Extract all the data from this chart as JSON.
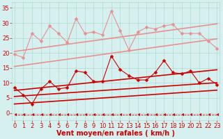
{
  "x": [
    0,
    1,
    2,
    3,
    4,
    5,
    6,
    7,
    8,
    9,
    10,
    11,
    12,
    13,
    14,
    15,
    16,
    17,
    18,
    19,
    20,
    21,
    22,
    23
  ],
  "series": [
    {
      "name": "light_pink_zigzag",
      "color": "#e89090",
      "marker": "D",
      "markersize": 2.5,
      "linewidth": 0.8,
      "linestyle": "-",
      "y": [
        19.5,
        18.5,
        26.5,
        24.0,
        29.0,
        26.5,
        23.5,
        31.5,
        26.5,
        27.0,
        26.0,
        34.0,
        27.5,
        21.0,
        27.0,
        28.5,
        28.0,
        29.0,
        29.5,
        26.5,
        26.5,
        26.5,
        24.0,
        21.5
      ]
    },
    {
      "name": "light_pink_trend_upper",
      "color": "#e89090",
      "marker": null,
      "markersize": 0,
      "linewidth": 1.2,
      "linestyle": "-",
      "y": [
        20.5,
        20.9,
        21.3,
        21.7,
        22.1,
        22.5,
        22.9,
        23.3,
        23.7,
        24.1,
        24.5,
        24.9,
        25.3,
        25.7,
        26.1,
        26.5,
        26.9,
        27.3,
        27.7,
        28.1,
        28.5,
        28.9,
        29.3,
        29.7
      ]
    },
    {
      "name": "light_pink_trend_lower",
      "color": "#e89090",
      "marker": null,
      "markersize": 0,
      "linewidth": 1.2,
      "linestyle": "-",
      "y": [
        15.5,
        15.9,
        16.3,
        16.7,
        17.1,
        17.5,
        17.9,
        18.3,
        18.7,
        19.1,
        19.5,
        19.9,
        20.3,
        20.7,
        21.1,
        21.5,
        21.9,
        22.3,
        22.7,
        23.1,
        23.5,
        23.9,
        24.3,
        24.7
      ]
    },
    {
      "name": "red_zigzag",
      "color": "#cc0000",
      "marker": "D",
      "markersize": 2.5,
      "linewidth": 0.8,
      "linestyle": "-",
      "y": [
        8.5,
        6.0,
        3.0,
        8.0,
        10.5,
        8.0,
        8.5,
        14.0,
        13.5,
        10.5,
        10.5,
        19.0,
        14.5,
        12.5,
        11.0,
        11.0,
        13.5,
        17.5,
        13.5,
        13.0,
        14.0,
        10.0,
        11.5,
        9.5
      ]
    },
    {
      "name": "red_trend_upper",
      "color": "#cc0000",
      "marker": null,
      "markersize": 0,
      "linewidth": 1.2,
      "linestyle": "-",
      "y": [
        7.5,
        7.8,
        8.1,
        8.4,
        8.7,
        9.0,
        9.3,
        9.6,
        9.9,
        10.2,
        10.5,
        10.8,
        11.1,
        11.4,
        11.7,
        12.0,
        12.3,
        12.6,
        12.9,
        13.2,
        13.5,
        13.8,
        14.1,
        14.4
      ]
    },
    {
      "name": "red_trend_mid",
      "color": "#cc0000",
      "marker": null,
      "markersize": 0,
      "linewidth": 1.2,
      "linestyle": "-",
      "y": [
        5.5,
        5.7,
        5.9,
        6.1,
        6.3,
        6.5,
        6.7,
        6.9,
        7.1,
        7.3,
        7.5,
        7.7,
        7.9,
        8.1,
        8.3,
        8.5,
        8.7,
        8.9,
        9.1,
        9.3,
        9.5,
        9.7,
        9.9,
        10.1
      ]
    },
    {
      "name": "red_trend_lower",
      "color": "#cc0000",
      "marker": null,
      "markersize": 0,
      "linewidth": 1.2,
      "linestyle": "-",
      "y": [
        3.0,
        3.2,
        3.4,
        3.6,
        3.8,
        4.0,
        4.2,
        4.4,
        4.6,
        4.8,
        5.0,
        5.2,
        5.4,
        5.6,
        5.8,
        6.0,
        6.2,
        6.4,
        6.6,
        6.8,
        7.0,
        7.2,
        7.4,
        7.6
      ]
    },
    {
      "name": "dashed_bottom",
      "color": "#cc0000",
      "marker": 4,
      "markersize": 3,
      "linewidth": 0.6,
      "linestyle": "--",
      "y": [
        -0.5,
        -0.5,
        -0.5,
        -0.5,
        -0.5,
        -0.5,
        -0.5,
        -0.5,
        -0.5,
        -0.5,
        -0.5,
        -0.5,
        -0.5,
        -0.5,
        -0.5,
        -0.5,
        -0.5,
        -0.5,
        -0.5,
        -0.5,
        -0.5,
        -0.5,
        -0.5,
        -0.5
      ]
    }
  ],
  "xlabel": "Vent moyen/en rafales ( km/h )",
  "xlim": [
    -0.3,
    23.3
  ],
  "ylim": [
    -2.5,
    37
  ],
  "yticks": [
    0,
    5,
    10,
    15,
    20,
    25,
    30,
    35
  ],
  "xticks": [
    0,
    1,
    2,
    3,
    4,
    5,
    6,
    7,
    8,
    9,
    10,
    11,
    12,
    13,
    14,
    15,
    16,
    17,
    18,
    19,
    20,
    21,
    22,
    23
  ],
  "bg_color": "#d6f0f0",
  "grid_color": "#b0d8d0",
  "xlabel_color": "#cc0000",
  "tick_color": "#cc0000",
  "xlabel_fontsize": 7,
  "tick_fontsize": 6
}
